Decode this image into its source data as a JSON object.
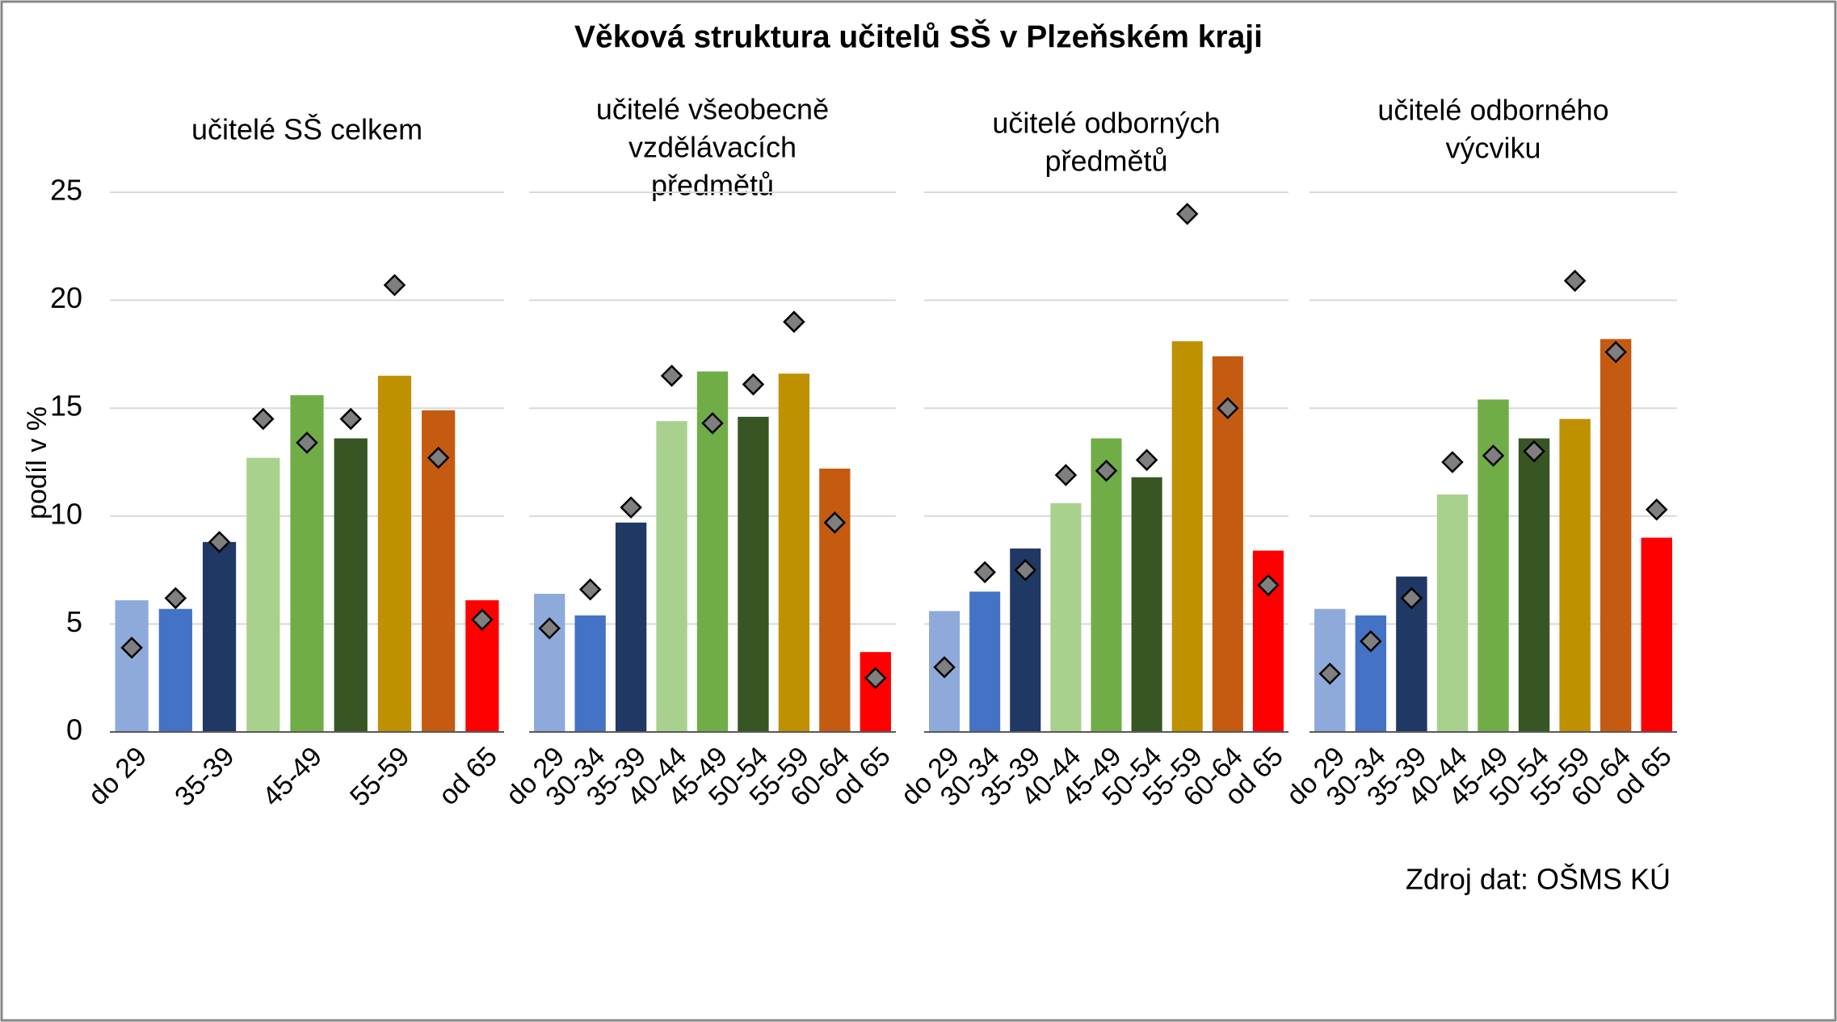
{
  "title": "Věková struktura učitelů SŠ v Plzeňském kraji",
  "source": "Zdroj dat: OŠMS KÚ",
  "chart_data": [
    {
      "type": "bar",
      "title_lines": [
        "učitelé SŠ celkem"
      ],
      "ylabel": "podíl v %",
      "ylim": [
        0,
        25
      ],
      "yticks": [
        0,
        5,
        10,
        15,
        20,
        25
      ],
      "grid": true,
      "categories": [
        "do 29",
        null,
        "35-39",
        null,
        "45-49",
        null,
        "55-59",
        null,
        "od 65"
      ],
      "series": [
        {
          "colors": [
            "#8eaadb",
            "#4472c4",
            "#1f3864",
            "#a9d18e",
            "#70ad47",
            "#375623",
            "#bf9000",
            "#c55a11",
            "#ff0000"
          ],
          "values": [
            6.1,
            5.7,
            8.8,
            12.7,
            15.6,
            13.6,
            16.5,
            14.9,
            6.1
          ]
        },
        {
          "marker": "diamond",
          "color": "#7f7f7f",
          "values": [
            3.9,
            6.2,
            8.8,
            14.5,
            13.4,
            14.5,
            20.7,
            12.7,
            5.2
          ]
        }
      ]
    },
    {
      "type": "bar",
      "title_lines": [
        "učitelé všeobecně",
        "vzdělávacích",
        "předmětů"
      ],
      "categories": [
        "do 29",
        "30-34",
        "35-39",
        "40-44",
        "45-49",
        "50-54",
        "55-59",
        "60-64",
        "od 65"
      ],
      "series": [
        {
          "colors": [
            "#8eaadb",
            "#4472c4",
            "#1f3864",
            "#a9d18e",
            "#70ad47",
            "#375623",
            "#bf9000",
            "#c55a11",
            "#ff0000"
          ],
          "values": [
            6.4,
            5.4,
            9.7,
            14.4,
            16.7,
            14.6,
            16.6,
            12.2,
            3.7
          ]
        },
        {
          "marker": "diamond",
          "color": "#7f7f7f",
          "values": [
            4.8,
            6.6,
            10.4,
            16.5,
            14.3,
            16.1,
            19.0,
            9.7,
            2.5
          ]
        }
      ]
    },
    {
      "type": "bar",
      "title_lines": [
        "učitelé odborných",
        "předmětů"
      ],
      "categories": [
        "do 29",
        "30-34",
        "35-39",
        "40-44",
        "45-49",
        "50-54",
        "55-59",
        "60-64",
        "od 65"
      ],
      "series": [
        {
          "colors": [
            "#8eaadb",
            "#4472c4",
            "#1f3864",
            "#a9d18e",
            "#70ad47",
            "#375623",
            "#bf9000",
            "#c55a11",
            "#ff0000"
          ],
          "values": [
            5.6,
            6.5,
            8.5,
            10.6,
            13.6,
            11.8,
            18.1,
            17.4,
            8.4
          ]
        },
        {
          "marker": "diamond",
          "color": "#7f7f7f",
          "values": [
            3.0,
            7.4,
            7.5,
            11.9,
            12.1,
            12.6,
            24.0,
            15.0,
            6.8
          ]
        }
      ]
    },
    {
      "type": "bar",
      "title_lines": [
        "učitelé odborného",
        "výcviku"
      ],
      "categories": [
        "do 29",
        "30-34",
        "35-39",
        "40-44",
        "45-49",
        "50-54",
        "55-59",
        "60-64",
        "od 65"
      ],
      "series": [
        {
          "colors": [
            "#8eaadb",
            "#4472c4",
            "#1f3864",
            "#a9d18e",
            "#70ad47",
            "#375623",
            "#bf9000",
            "#c55a11",
            "#ff0000"
          ],
          "values": [
            5.7,
            5.4,
            7.2,
            11.0,
            15.4,
            13.6,
            14.5,
            18.2,
            9.0
          ]
        },
        {
          "marker": "diamond",
          "color": "#7f7f7f",
          "values": [
            2.7,
            4.2,
            6.2,
            12.5,
            12.8,
            13.0,
            20.9,
            17.6,
            10.3
          ]
        }
      ]
    }
  ]
}
